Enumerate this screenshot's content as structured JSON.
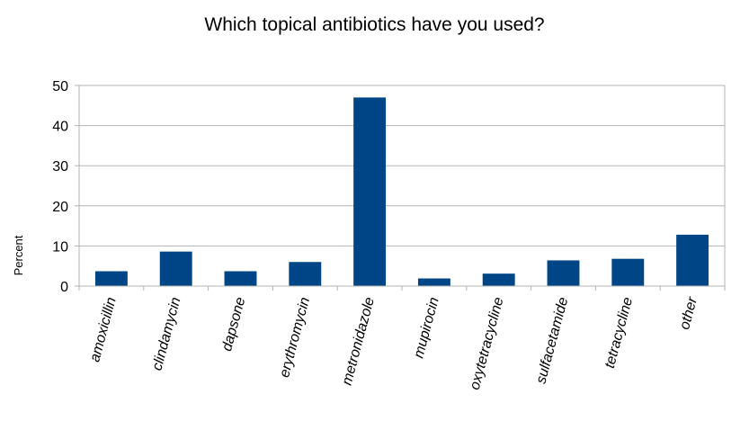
{
  "chart_data": {
    "type": "bar",
    "title": "Which topical antibiotics have you used?",
    "ylabel": "Percent",
    "xlabel": "",
    "categories": [
      "amoxicillin",
      "clindamycin",
      "dapsone",
      "erythromycin",
      "metronidazole",
      "mupirocin",
      "oxytetracycline",
      "sulfacetamide",
      "tetracycline",
      "other"
    ],
    "values": [
      3.7,
      8.6,
      3.7,
      6.0,
      47.0,
      1.9,
      3.1,
      6.4,
      6.8,
      12.8
    ],
    "ylim": [
      0,
      50
    ],
    "yticks": [
      0,
      10,
      20,
      30,
      40,
      50
    ],
    "grid": true,
    "legend": "none",
    "colors": {
      "bar": "#004586",
      "grid": "#b3b3b3",
      "axis": "#b3b3b3"
    }
  }
}
